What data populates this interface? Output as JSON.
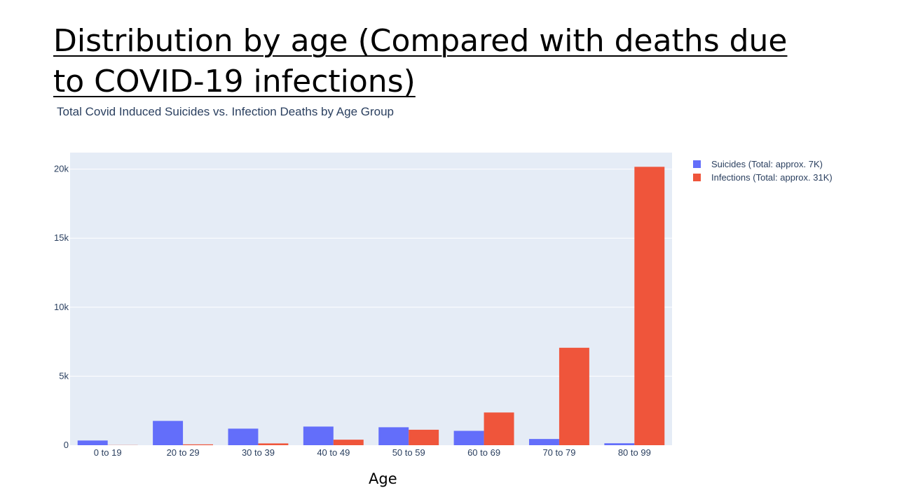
{
  "slide": {
    "title": "Distribution by age (Compared with deaths due to COVID-19 infections)"
  },
  "chart_data": {
    "type": "bar",
    "title": "Total Covid Induced Suicides vs. Infection Deaths by Age Group",
    "xlabel": "Age",
    "ylabel": "",
    "categories": [
      "0 to 19",
      "20 to 29",
      "30 to 39",
      "40 to 49",
      "50 to 59",
      "60 to 69",
      "70 to 79",
      "80 to 99"
    ],
    "series": [
      {
        "name": "Suicides (Total: approx. 7K)",
        "color": "#636efa",
        "values": [
          340,
          1760,
          1200,
          1350,
          1300,
          1040,
          450,
          140
        ]
      },
      {
        "name": "Infections (Total: approx. 31K)",
        "color": "#ef553b",
        "values": [
          10,
          60,
          130,
          400,
          1120,
          2370,
          7060,
          20170
        ]
      }
    ],
    "ylim": [
      0,
      21200
    ],
    "yticks": [
      0,
      5000,
      10000,
      15000,
      20000
    ],
    "ytick_labels": [
      "0",
      "5k",
      "10k",
      "15k",
      "20k"
    ],
    "grid": true,
    "legend_position": "top-right",
    "background": "#e5ecf6"
  }
}
